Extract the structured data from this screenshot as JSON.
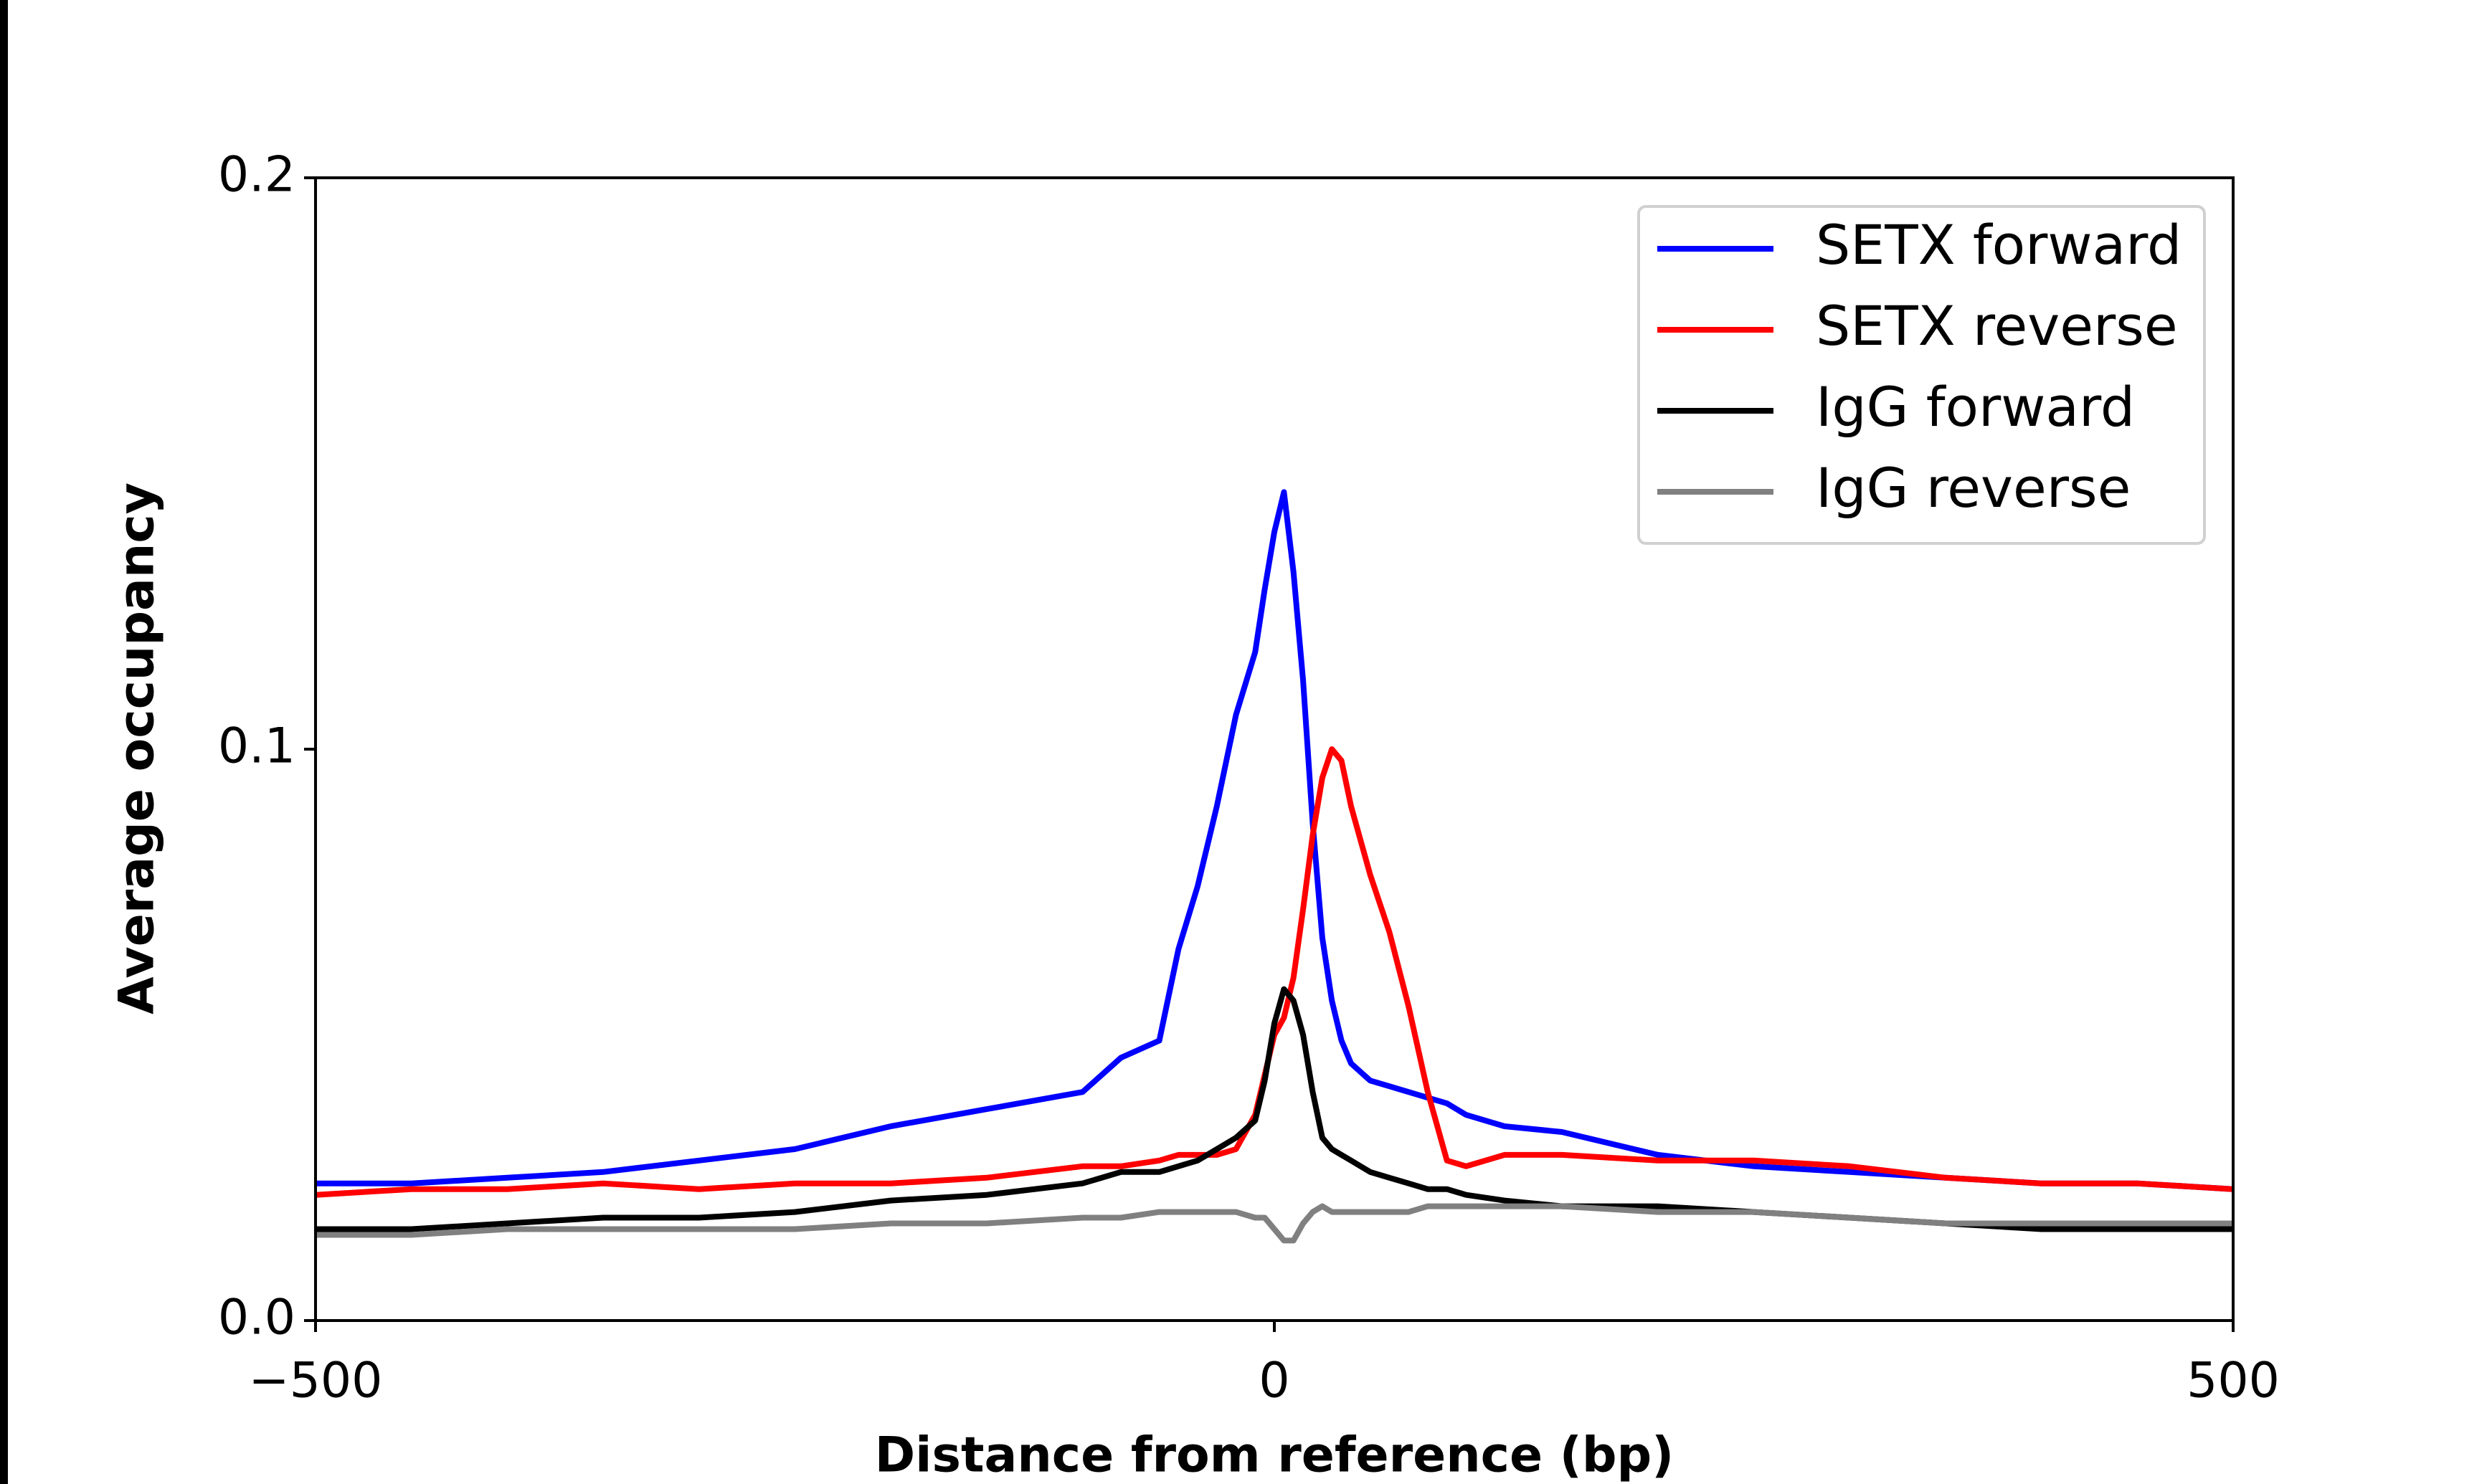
{
  "chart_data": {
    "type": "line",
    "xlabel": "Distance from reference (bp)",
    "ylabel": "Average occupancy",
    "x": [
      -500,
      -450,
      -400,
      -350,
      -300,
      -250,
      -200,
      -150,
      -100,
      -80,
      -60,
      -50,
      -40,
      -30,
      -20,
      -10,
      -5,
      0,
      5,
      10,
      15,
      20,
      25,
      30,
      35,
      40,
      50,
      60,
      70,
      80,
      90,
      100,
      120,
      150,
      200,
      250,
      300,
      350,
      400,
      450,
      500
    ],
    "series": [
      {
        "name": "SETX forward",
        "color": "#0000ff",
        "values": [
          0.024,
          0.024,
          0.025,
          0.026,
          0.028,
          0.03,
          0.034,
          0.037,
          0.04,
          0.046,
          0.049,
          0.065,
          0.076,
          0.09,
          0.106,
          0.117,
          0.128,
          0.138,
          0.145,
          0.131,
          0.112,
          0.087,
          0.067,
          0.056,
          0.049,
          0.045,
          0.042,
          0.041,
          0.04,
          0.039,
          0.038,
          0.036,
          0.034,
          0.033,
          0.029,
          0.027,
          0.026,
          0.025,
          0.024,
          0.024,
          0.023
        ]
      },
      {
        "name": "SETX reverse",
        "color": "#ff0000",
        "values": [
          0.022,
          0.023,
          0.023,
          0.024,
          0.023,
          0.024,
          0.024,
          0.025,
          0.027,
          0.027,
          0.028,
          0.029,
          0.029,
          0.029,
          0.03,
          0.036,
          0.043,
          0.05,
          0.053,
          0.06,
          0.072,
          0.085,
          0.095,
          0.1,
          0.098,
          0.09,
          0.078,
          0.068,
          0.055,
          0.04,
          0.028,
          0.027,
          0.029,
          0.029,
          0.028,
          0.028,
          0.027,
          0.025,
          0.024,
          0.024,
          0.023
        ]
      },
      {
        "name": "IgG forward",
        "color": "#000000",
        "values": [
          0.016,
          0.016,
          0.017,
          0.018,
          0.018,
          0.019,
          0.021,
          0.022,
          0.024,
          0.026,
          0.026,
          0.027,
          0.028,
          0.03,
          0.032,
          0.035,
          0.042,
          0.052,
          0.058,
          0.056,
          0.05,
          0.04,
          0.032,
          0.03,
          0.029,
          0.028,
          0.026,
          0.025,
          0.024,
          0.023,
          0.023,
          0.022,
          0.021,
          0.02,
          0.02,
          0.019,
          0.018,
          0.017,
          0.016,
          0.016,
          0.016
        ]
      },
      {
        "name": "IgG reverse",
        "color": "#808080",
        "values": [
          0.015,
          0.015,
          0.016,
          0.016,
          0.016,
          0.016,
          0.017,
          0.017,
          0.018,
          0.018,
          0.019,
          0.019,
          0.019,
          0.019,
          0.019,
          0.018,
          0.018,
          0.016,
          0.014,
          0.014,
          0.017,
          0.019,
          0.02,
          0.019,
          0.019,
          0.019,
          0.019,
          0.019,
          0.019,
          0.02,
          0.02,
          0.02,
          0.02,
          0.02,
          0.019,
          0.019,
          0.018,
          0.017,
          0.017,
          0.017,
          0.017
        ]
      }
    ],
    "xlim": [
      -500,
      500
    ],
    "xticks": [
      {
        "value": -500,
        "label": "−500"
      },
      0,
      500
    ],
    "ylim": [
      0,
      0.2
    ],
    "yticks": [
      {
        "value": 0,
        "label": "0.0"
      },
      0.1,
      0.2
    ],
    "grid": false,
    "legend": "upper right"
  }
}
